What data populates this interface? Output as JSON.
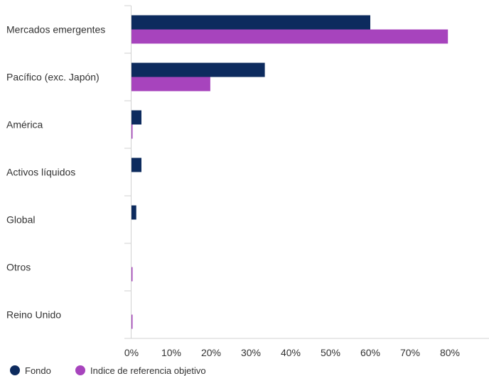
{
  "chart_data": {
    "type": "bar",
    "orientation": "horizontal",
    "categories": [
      "Mercados emergentes",
      "Pacífico (exc. Japón)",
      "América",
      "Activos líquidos",
      "Global",
      "Otros",
      "Reino Unido"
    ],
    "series": [
      {
        "name": "Fondo",
        "color": "#0d2b5e",
        "values": [
          60.0,
          33.5,
          2.5,
          2.5,
          1.2,
          0.0,
          0.0
        ]
      },
      {
        "name": "Indice de referencia objetivo",
        "color": "#a744bd",
        "values": [
          79.5,
          19.8,
          0.2,
          0.0,
          0.0,
          0.2,
          0.2
        ]
      }
    ],
    "x_ticks": [
      "0%",
      "10%",
      "20%",
      "30%",
      "40%",
      "50%",
      "60%",
      "70%",
      "80%"
    ],
    "xlim": [
      0,
      80
    ],
    "legend_position": "bottom-left",
    "grid": false
  }
}
